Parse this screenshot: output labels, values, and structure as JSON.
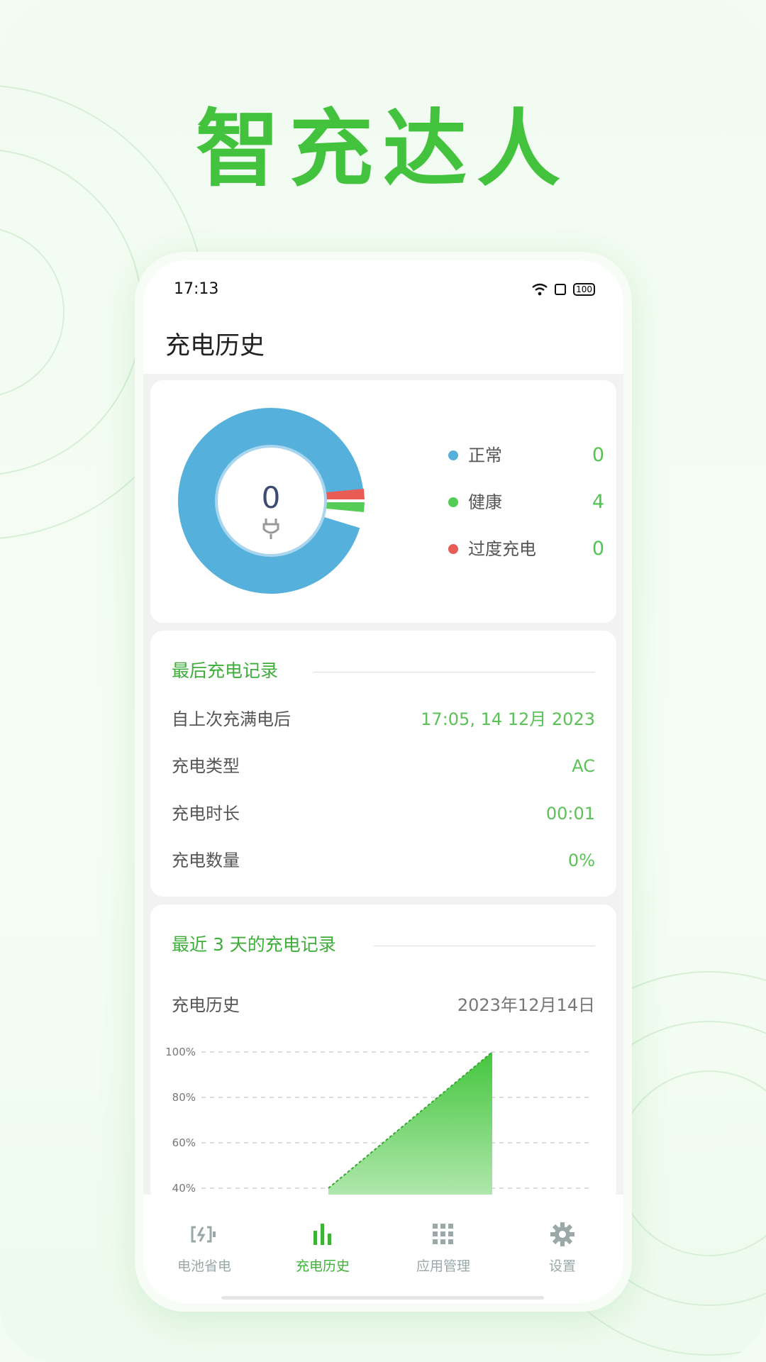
{
  "brand_title": "智充达人",
  "status_bar": {
    "time": "17:13",
    "battery": "100"
  },
  "header": {
    "title": "充电历史"
  },
  "summary": {
    "center_value": "0",
    "legend": [
      {
        "label": "正常",
        "value": "0",
        "color": "#56b0dc"
      },
      {
        "label": "健康",
        "value": "4",
        "color": "#55cc55"
      },
      {
        "label": "过度充电",
        "value": "0",
        "color": "#e95c55"
      }
    ]
  },
  "last_charge": {
    "title": "最后充电记录",
    "rows": [
      {
        "label": "自上次充满电后",
        "value": "17:05, 14 12月 2023"
      },
      {
        "label": "充电类型",
        "value": "AC"
      },
      {
        "label": "充电时长",
        "value": "00:01"
      },
      {
        "label": "充电数量",
        "value": "0%"
      }
    ]
  },
  "recent": {
    "title": "最近 3 天的充电记录",
    "subtitle": "充电历史",
    "date": "2023年12月14日"
  },
  "chart_data": {
    "type": "area",
    "yticks": [
      "100%",
      "80%",
      "60%",
      "40%"
    ],
    "ylim": [
      40,
      100
    ],
    "values": [
      40,
      100
    ],
    "grid": true,
    "color": "#45c63e"
  },
  "nav": {
    "items": [
      {
        "label": "电池省电",
        "active": false
      },
      {
        "label": "充电历史",
        "active": true
      },
      {
        "label": "应用管理",
        "active": false
      },
      {
        "label": "设置",
        "active": false
      }
    ]
  }
}
